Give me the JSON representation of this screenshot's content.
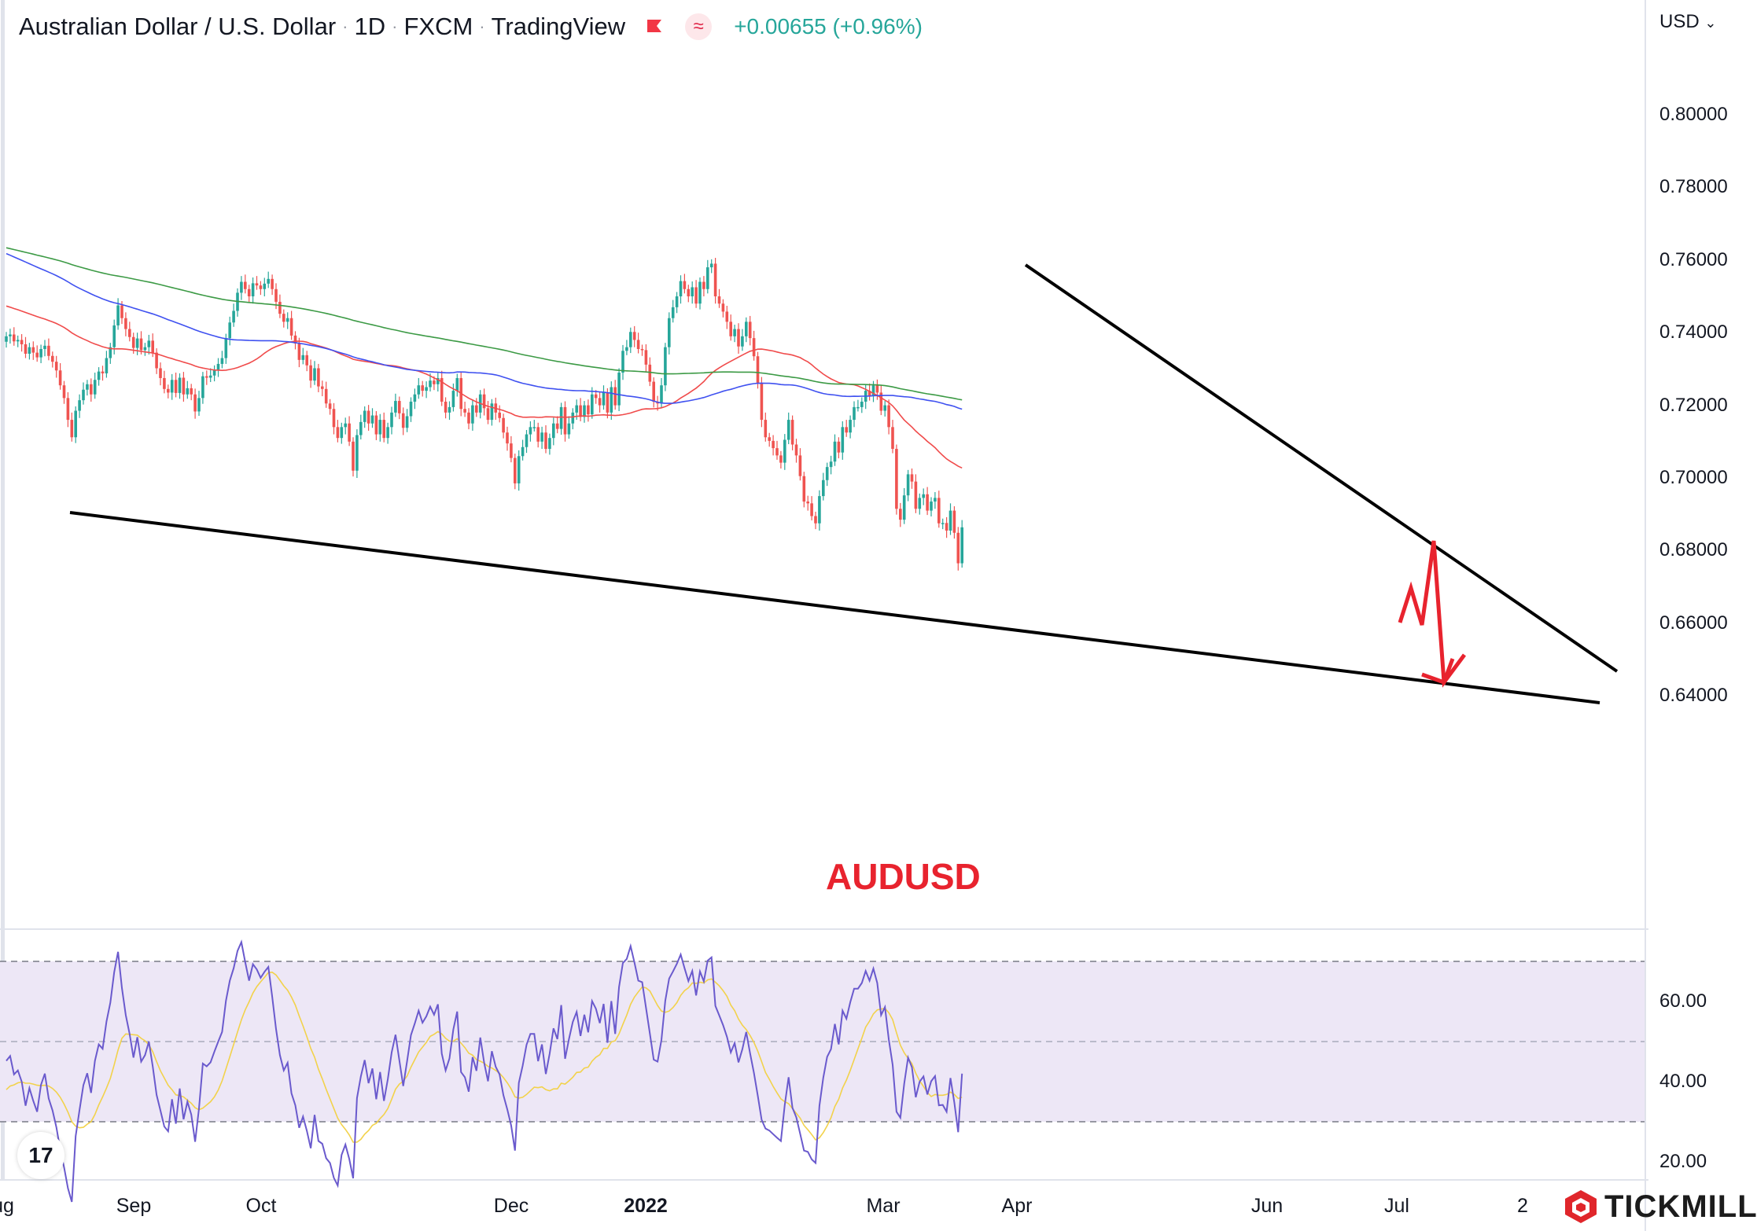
{
  "header": {
    "symbol_name": "Australian Dollar / U.S. Dollar",
    "interval": "1D",
    "exchange": "FXCM",
    "source": "TradingView",
    "change": "+0.00655 (+0.96%)",
    "flag_icon": "flag-icon",
    "indicator_icon": "wave-icon",
    "change_color": "#26a69a"
  },
  "currency_selector": "USD",
  "annotation_text": "AUDUSD",
  "brand": {
    "tickmill": "TICKMILL",
    "tradingview_logo": "17"
  },
  "colors": {
    "up": "#26a69a",
    "down": "#ef5350",
    "ma_short": "#f04b4b",
    "ma_mid": "#3f51f0",
    "ma_long": "#3c9a45",
    "trendline": "#000000",
    "arrow": "#e8232e",
    "rsi": "#6a5acd",
    "rsi_ma": "#f2d24b",
    "rsi_band": "#ede7f6"
  },
  "chart_data": [
    {
      "type": "candlestick",
      "title": "Australian Dollar / U.S. Dollar · 1D · FXCM",
      "ylabel": "USD",
      "ylim": [
        0.625,
        0.825
      ],
      "y_ticks": [
        "0.80000",
        "0.78000",
        "0.76000",
        "0.74000",
        "0.72000",
        "0.70000",
        "0.68000",
        "0.66000",
        "0.64000"
      ],
      "y_tick_values": [
        0.8,
        0.78,
        0.76,
        0.74,
        0.72,
        0.7,
        0.68,
        0.66,
        0.64
      ],
      "x_ticks": [
        "ug",
        "Sep",
        "Oct",
        "Dec",
        "2022",
        "Mar",
        "Apr",
        "Jun",
        "Jul",
        "2"
      ],
      "closes": [
        0.739,
        0.7395,
        0.7376,
        0.738,
        0.7368,
        0.7342,
        0.736,
        0.7345,
        0.7332,
        0.7355,
        0.7364,
        0.7336,
        0.732,
        0.7296,
        0.7255,
        0.722,
        0.716,
        0.7112,
        0.7185,
        0.7214,
        0.7243,
        0.7258,
        0.723,
        0.727,
        0.7293,
        0.7288,
        0.733,
        0.736,
        0.742,
        0.7475,
        0.744,
        0.741,
        0.7388,
        0.7358,
        0.7384,
        0.7352,
        0.736,
        0.7378,
        0.7345,
        0.7302,
        0.7275,
        0.7245,
        0.7235,
        0.727,
        0.7234,
        0.7276,
        0.723,
        0.7247,
        0.723,
        0.7183,
        0.722,
        0.728,
        0.7276,
        0.7282,
        0.7298,
        0.7314,
        0.733,
        0.7385,
        0.7428,
        0.746,
        0.751,
        0.754,
        0.752,
        0.75,
        0.7536,
        0.753,
        0.752,
        0.7535,
        0.7548,
        0.752,
        0.7485,
        0.7452,
        0.743,
        0.744,
        0.7392,
        0.737,
        0.7325,
        0.7338,
        0.731,
        0.7268,
        0.7302,
        0.7252,
        0.7245,
        0.7205,
        0.719,
        0.714,
        0.711,
        0.714,
        0.715,
        0.71,
        0.702,
        0.7118,
        0.7154,
        0.7185,
        0.715,
        0.7172,
        0.712,
        0.716,
        0.711,
        0.714,
        0.718,
        0.7212,
        0.7178,
        0.7138,
        0.717,
        0.721,
        0.723,
        0.7255,
        0.724,
        0.725,
        0.7268,
        0.7258,
        0.7275,
        0.721,
        0.718,
        0.7195,
        0.724,
        0.7275,
        0.719,
        0.718,
        0.715,
        0.72,
        0.718,
        0.723,
        0.7192,
        0.716,
        0.7205,
        0.718,
        0.7165,
        0.7125,
        0.7095,
        0.7055,
        0.6985,
        0.706,
        0.7085,
        0.712,
        0.714,
        0.714,
        0.71,
        0.7125,
        0.708,
        0.711,
        0.715,
        0.7135,
        0.7195,
        0.712,
        0.715,
        0.718,
        0.72,
        0.7168,
        0.72,
        0.7175,
        0.723,
        0.722,
        0.72,
        0.7235,
        0.718,
        0.725,
        0.72,
        0.729,
        0.735,
        0.736,
        0.7402,
        0.738,
        0.7355,
        0.7352,
        0.7312,
        0.7265,
        0.721,
        0.7205,
        0.7255,
        0.736,
        0.744,
        0.747,
        0.75,
        0.7542,
        0.752,
        0.75,
        0.7525,
        0.748,
        0.754,
        0.752,
        0.758,
        0.759,
        0.75,
        0.748,
        0.7458,
        0.743,
        0.739,
        0.741,
        0.7362,
        0.739,
        0.743,
        0.7385,
        0.7335,
        0.7262,
        0.716,
        0.7112,
        0.7102,
        0.7082,
        0.7062,
        0.7042,
        0.7105,
        0.716,
        0.7092,
        0.7062,
        0.7005,
        0.6935,
        0.693,
        0.6895,
        0.6875,
        0.695,
        0.6994,
        0.703,
        0.7045,
        0.71,
        0.707,
        0.714,
        0.7125,
        0.716,
        0.7195,
        0.7195,
        0.721,
        0.724,
        0.7225,
        0.7255,
        0.7235,
        0.7185,
        0.72,
        0.714,
        0.708,
        0.6915,
        0.6885,
        0.6952,
        0.701,
        0.699,
        0.6915,
        0.6945,
        0.6955,
        0.691,
        0.6935,
        0.6945,
        0.6875,
        0.6876,
        0.6855,
        0.691,
        0.6849,
        0.6765,
        0.6864
      ]
    },
    {
      "type": "line",
      "title": "RSI",
      "ylim": [
        16,
        76
      ],
      "y_ticks": [
        "60.00",
        "40.00",
        "20.00"
      ],
      "y_tick_values": [
        60,
        40,
        20
      ],
      "band": [
        30,
        70
      ],
      "midline": 50,
      "series": [
        {
          "name": "",
          "values": [
            45.2,
            46.4,
            41.8,
            42.8,
            40.0,
            34.0,
            38.4,
            35.2,
            32.5,
            39.2,
            42.0,
            35.8,
            32.8,
            28.6,
            23.0,
            18.6,
            13.4,
            10.0,
            26.4,
            32.9,
            39.1,
            42.1,
            37.2,
            45.2,
            49.3,
            48.2,
            55.0,
            59.7,
            67.3,
            72.4,
            63.4,
            56.6,
            51.9,
            46.0,
            51.1,
            45.0,
            46.6,
            50.0,
            43.8,
            36.7,
            32.8,
            28.8,
            27.6,
            35.6,
            29.5,
            38.3,
            30.6,
            35.0,
            31.8,
            25.0,
            33.3,
            44.5,
            43.8,
            44.8,
            47.5,
            50.0,
            52.4,
            60.2,
            65.2,
            68.3,
            72.6,
            74.8,
            69.8,
            65.2,
            69.3,
            68.0,
            65.9,
            67.4,
            68.6,
            61.2,
            53.1,
            46.6,
            42.8,
            44.7,
            37.1,
            34.1,
            28.5,
            31.3,
            27.7,
            23.4,
            31.7,
            25.2,
            24.5,
            20.9,
            19.7,
            16.0,
            14.1,
            21.7,
            24.3,
            20.7,
            15.9,
            35.9,
            41.3,
            45.4,
            39.6,
            43.3,
            35.6,
            42.4,
            35.2,
            40.6,
            47.3,
            51.7,
            45.3,
            38.9,
            45.1,
            51.6,
            54.5,
            57.7,
            54.7,
            56.3,
            58.7,
            56.7,
            59.3,
            47.0,
            42.8,
            45.8,
            53.0,
            57.5,
            42.4,
            41.1,
            37.5,
            46.1,
            42.7,
            51.0,
            44.7,
            40.1,
            47.6,
            43.7,
            41.8,
            36.6,
            33.1,
            29.1,
            22.8,
            39.7,
            44.0,
            49.2,
            51.9,
            51.9,
            45.1,
            49.3,
            41.9,
            47.0,
            53.3,
            50.6,
            59.1,
            45.7,
            50.6,
            54.9,
            57.4,
            51.4,
            56.7,
            52.3,
            60.1,
            58.2,
            54.6,
            59.4,
            49.7,
            60.1,
            51.9,
            63.6,
            69.6,
            70.6,
            73.8,
            69.7,
            65.2,
            64.8,
            58.4,
            52.0,
            45.5,
            45.0,
            50.4,
            60.2,
            65.7,
            67.5,
            69.4,
            71.7,
            68.3,
            65.1,
            67.6,
            61.5,
            67.5,
            65.0,
            70.2,
            71.0,
            58.9,
            56.5,
            54.1,
            51.2,
            47.3,
            49.6,
            44.8,
            48.1,
            52.4,
            47.1,
            42.2,
            36.5,
            30.5,
            28.3,
            27.8,
            26.9,
            26.0,
            25.2,
            34.2,
            41.1,
            33.5,
            31.1,
            27.0,
            22.8,
            22.5,
            20.6,
            19.7,
            34.0,
            41.0,
            46.2,
            48.1,
            54.4,
            49.3,
            57.7,
            55.7,
            59.8,
            63.2,
            63.2,
            64.6,
            67.6,
            65.2,
            68.2,
            64.6,
            56.6,
            58.6,
            50.5,
            44.2,
            32.5,
            31.0,
            39.5,
            46.0,
            43.6,
            36.1,
            40.0,
            41.3,
            36.8,
            40.1,
            41.4,
            34.1,
            34.2,
            32.5,
            40.9,
            34.8,
            27.4,
            42.0
          ]
        },
        {
          "name": "",
          "values": [
            38.0,
            38.9,
            39.2,
            39.7,
            39.9,
            39.6,
            39.6,
            39.4,
            39.1,
            39.0,
            39.1,
            38.9,
            38.3,
            37.4,
            36.1,
            34.4,
            32.4,
            30.0,
            28.9,
            28.5,
            28.6,
            29.4,
            30.0,
            31.8,
            34.2,
            36.2,
            38.4,
            40.8,
            44.2,
            47.9,
            50.8,
            51.9,
            51.8,
            51.7,
            51.6,
            50.8,
            50.2,
            49.2,
            47.5,
            45.0,
            42.7,
            40.9,
            39.1,
            38.0,
            36.7,
            36.5,
            36.2,
            35.4,
            34.6,
            33.5,
            33.0,
            33.4,
            34.2,
            35.0,
            36.2,
            37.9,
            40.2,
            43.2,
            46.2,
            49.3,
            52.4,
            55.4,
            57.9,
            59.9,
            62.1,
            63.7,
            64.9,
            66.0,
            67.2,
            67.3,
            66.6,
            65.3,
            63.9,
            62.8,
            61.1,
            59.1,
            56.4,
            53.9,
            51.2,
            48.3,
            46.1,
            43.1,
            40.7,
            38.1,
            35.7,
            33.3,
            30.9,
            29.3,
            28.1,
            26.7,
            24.9,
            24.9,
            25.6,
            26.9,
            27.8,
            29.1,
            29.6,
            30.8,
            31.8,
            33.3,
            35.6,
            38.1,
            39.4,
            40.1,
            41.4,
            43.6,
            45.5,
            47.4,
            48.6,
            49.8,
            51.3,
            51.8,
            52.5,
            51.9,
            50.8,
            50.1,
            50.1,
            50.7,
            49.6,
            48.5,
            47.1,
            46.6,
            45.5,
            45.1,
            44.6,
            43.8,
            43.4,
            42.8,
            42.1,
            41.0,
            39.7,
            38.2,
            36.2,
            35.9,
            36.1,
            36.8,
            37.7,
            38.6,
            38.5,
            38.7,
            38.0,
            37.7,
            38.2,
            38.2,
            39.6,
            39.4,
            40.2,
            41.1,
            42.3,
            42.4,
            43.4,
            43.6,
            45.1,
            46.1,
            46.7,
            48.3,
            48.3,
            49.9,
            50.2,
            51.9,
            54.3,
            56.6,
            59.3,
            61.1,
            62.4,
            63.6,
            63.4,
            62.6,
            60.8,
            59.0,
            57.6,
            57.3,
            57.6,
            58.5,
            59.7,
            61.5,
            62.7,
            63.4,
            64.6,
            64.5,
            64.8,
            64.6,
            65.4,
            65.6,
            64.8,
            63.9,
            62.7,
            61.3,
            59.1,
            57.7,
            55.6,
            54.1,
            53.0,
            51.5,
            49.8,
            47.6,
            45.0,
            42.3,
            40.6,
            38.8,
            37.2,
            35.7,
            35.0,
            34.5,
            33.3,
            32.1,
            30.9,
            29.1,
            28.0,
            26.8,
            25.5,
            26.0,
            27.3,
            29.0,
            31.0,
            33.8,
            35.6,
            38.4,
            40.4,
            42.8,
            45.5,
            48.2,
            50.8,
            53.6,
            55.1,
            56.9,
            57.9,
            58.1,
            58.3,
            57.2,
            55.5,
            52.2,
            49.1,
            47.2,
            45.8,
            44.5,
            42.1,
            40.2,
            38.8,
            37.3,
            36.3,
            36.8,
            36.6,
            36.6,
            36.8,
            37.4,
            36.8,
            35.8,
            36.1
          ]
        }
      ]
    }
  ]
}
